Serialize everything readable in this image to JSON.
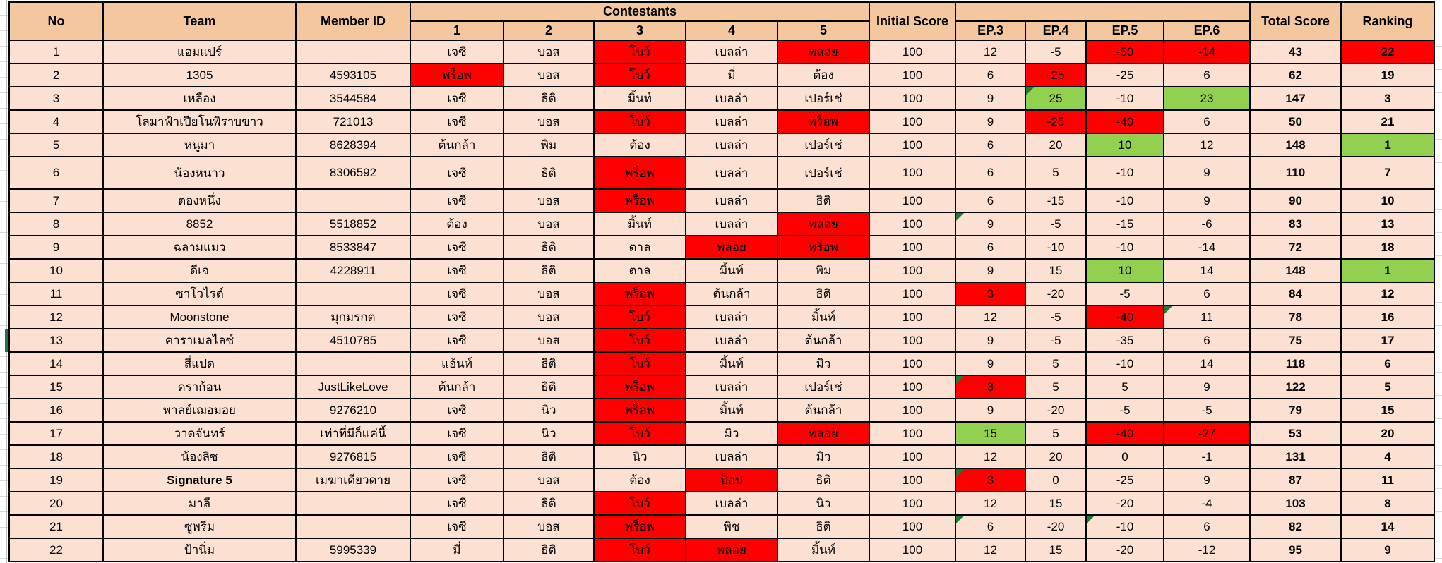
{
  "colors": {
    "header_bg": "#F4C79F",
    "row_bg": "#FCE0D1",
    "red": "#FF0000",
    "green": "#92D050",
    "flag_green": "#1E7B34"
  },
  "header": {
    "no": "No",
    "team": "Team",
    "member_id": "Member ID",
    "contestants": "Contestants",
    "contestant_numbers": [
      "1",
      "2",
      "3",
      "4",
      "5"
    ],
    "initial_score": "Initial Score",
    "ep_labels": [
      "EP.3",
      "EP.4",
      "EP.5",
      "EP.6"
    ],
    "total_score": "Total Score",
    "ranking": "Ranking"
  },
  "rows": [
    {
      "no": "1",
      "team": "แอมแปร์",
      "member_id": "",
      "c": [
        {
          "v": "เจซี"
        },
        {
          "v": "บอส"
        },
        {
          "v": "โบว์",
          "bg": "red"
        },
        {
          "v": "เบลล่า"
        },
        {
          "v": "พลอย",
          "bg": "red"
        }
      ],
      "initial": "100",
      "ep": [
        {
          "v": "12"
        },
        {
          "v": "-5"
        },
        {
          "v": "-50",
          "bg": "red"
        },
        {
          "v": "-14",
          "bg": "red"
        }
      ],
      "total": "43",
      "rank": {
        "v": "22",
        "bg": "red"
      }
    },
    {
      "no": "2",
      "team": "1305",
      "member_id": "4593105",
      "c": [
        {
          "v": "พร็อพ",
          "bg": "red"
        },
        {
          "v": "บอส"
        },
        {
          "v": "โบว์",
          "bg": "red"
        },
        {
          "v": "มี่"
        },
        {
          "v": "ต้อง"
        }
      ],
      "initial": "100",
      "ep": [
        {
          "v": "6"
        },
        {
          "v": "-25",
          "bg": "red"
        },
        {
          "v": "-25"
        },
        {
          "v": "6"
        }
      ],
      "total": "62",
      "rank": {
        "v": "19"
      }
    },
    {
      "no": "3",
      "team": "เหลือง",
      "member_id": "3544584",
      "c": [
        {
          "v": "เจซี"
        },
        {
          "v": "ธิติ"
        },
        {
          "v": "มิ้นท์"
        },
        {
          "v": "เบลล่า"
        },
        {
          "v": "เปอร์เช่"
        }
      ],
      "initial": "100",
      "ep": [
        {
          "v": "9"
        },
        {
          "v": "25",
          "bg": "green",
          "flag": true
        },
        {
          "v": "-10"
        },
        {
          "v": "23",
          "bg": "green"
        }
      ],
      "total": "147",
      "rank": {
        "v": "3"
      }
    },
    {
      "no": "4",
      "team": "โลมาฟ้าเปียโนพิราบขาว",
      "member_id": "721013",
      "c": [
        {
          "v": "เจซี"
        },
        {
          "v": "บอส"
        },
        {
          "v": "โบว์",
          "bg": "red"
        },
        {
          "v": "เบลล่า"
        },
        {
          "v": "พร็อพ",
          "bg": "red"
        }
      ],
      "initial": "100",
      "ep": [
        {
          "v": "9"
        },
        {
          "v": "-25",
          "bg": "red"
        },
        {
          "v": "-40",
          "bg": "red"
        },
        {
          "v": "6"
        }
      ],
      "total": "50",
      "rank": {
        "v": "21"
      }
    },
    {
      "no": "5",
      "team": "หนูมา",
      "member_id": "8628394",
      "c": [
        {
          "v": "ต้นกล้า"
        },
        {
          "v": "พิม"
        },
        {
          "v": "ต้อง"
        },
        {
          "v": "เบลล่า"
        },
        {
          "v": "เปอร์เช่"
        }
      ],
      "initial": "100",
      "ep": [
        {
          "v": "6"
        },
        {
          "v": "20"
        },
        {
          "v": "10",
          "bg": "green"
        },
        {
          "v": "12"
        }
      ],
      "total": "148",
      "rank": {
        "v": "1",
        "bg": "green"
      }
    },
    {
      "no": "6",
      "team": "น้องหนาว",
      "member_id": "8306592",
      "h": 46,
      "c": [
        {
          "v": "เจซี"
        },
        {
          "v": "ธิติ"
        },
        {
          "v": "พร็อพ",
          "bg": "red"
        },
        {
          "v": "เบลล่า"
        },
        {
          "v": "เปอร์เช่"
        }
      ],
      "initial": "100",
      "ep": [
        {
          "v": "6"
        },
        {
          "v": "5"
        },
        {
          "v": "-10"
        },
        {
          "v": "9"
        }
      ],
      "total": "110",
      "rank": {
        "v": "7"
      }
    },
    {
      "no": "7",
      "team": "ตองหนึ่ง",
      "member_id": "",
      "c": [
        {
          "v": "เจซี"
        },
        {
          "v": "บอส"
        },
        {
          "v": "พร็อพ",
          "bg": "red"
        },
        {
          "v": "เบลล่า"
        },
        {
          "v": "ธิติ"
        }
      ],
      "initial": "100",
      "ep": [
        {
          "v": "6"
        },
        {
          "v": "-15"
        },
        {
          "v": "-10"
        },
        {
          "v": "9"
        }
      ],
      "total": "90",
      "rank": {
        "v": "10"
      }
    },
    {
      "no": "8",
      "team": "8852",
      "member_id": "5518852",
      "c": [
        {
          "v": "ต้อง"
        },
        {
          "v": "บอส"
        },
        {
          "v": "มิ้นท์"
        },
        {
          "v": "เบลล่า"
        },
        {
          "v": "พลอย",
          "bg": "red"
        }
      ],
      "initial": "100",
      "ep": [
        {
          "v": "9",
          "flag": true
        },
        {
          "v": "-5"
        },
        {
          "v": "-15"
        },
        {
          "v": "-6"
        }
      ],
      "total": "83",
      "rank": {
        "v": "13"
      }
    },
    {
      "no": "9",
      "team": "ฉลามแมว",
      "member_id": "8533847",
      "c": [
        {
          "v": "เจซี"
        },
        {
          "v": "ธิติ"
        },
        {
          "v": "ตาล"
        },
        {
          "v": "พลอย",
          "bg": "red"
        },
        {
          "v": "พร็อพ",
          "bg": "red"
        }
      ],
      "initial": "100",
      "ep": [
        {
          "v": "6"
        },
        {
          "v": "-10"
        },
        {
          "v": "-10"
        },
        {
          "v": "-14"
        }
      ],
      "total": "72",
      "rank": {
        "v": "18"
      }
    },
    {
      "no": "10",
      "team": "ดีเจ",
      "member_id": "4228911",
      "c": [
        {
          "v": "เจซี"
        },
        {
          "v": "ธิติ"
        },
        {
          "v": "ตาล"
        },
        {
          "v": "มิ้นท์"
        },
        {
          "v": "พิม"
        }
      ],
      "initial": "100",
      "ep": [
        {
          "v": "9"
        },
        {
          "v": "15"
        },
        {
          "v": "10",
          "bg": "green"
        },
        {
          "v": "14"
        }
      ],
      "total": "148",
      "rank": {
        "v": "1",
        "bg": "green"
      }
    },
    {
      "no": "11",
      "team": "ซาโวไรต์",
      "member_id": "",
      "c": [
        {
          "v": "เจซี"
        },
        {
          "v": "บอส"
        },
        {
          "v": "พร็อพ",
          "bg": "red"
        },
        {
          "v": "ต้นกล้า"
        },
        {
          "v": "ธิติ"
        }
      ],
      "initial": "100",
      "ep": [
        {
          "v": "3",
          "bg": "red"
        },
        {
          "v": "-20"
        },
        {
          "v": "-5"
        },
        {
          "v": "6"
        }
      ],
      "total": "84",
      "rank": {
        "v": "12"
      }
    },
    {
      "no": "12",
      "team": "Moonstone",
      "member_id": "มุกมรกต",
      "c": [
        {
          "v": "เจซี"
        },
        {
          "v": "บอส"
        },
        {
          "v": "โบว์",
          "bg": "red"
        },
        {
          "v": "เบลล่า"
        },
        {
          "v": "มิ้นท์"
        }
      ],
      "initial": "100",
      "ep": [
        {
          "v": "12"
        },
        {
          "v": "-5"
        },
        {
          "v": "-40",
          "bg": "red"
        },
        {
          "v": "11",
          "flag": true
        }
      ],
      "total": "78",
      "rank": {
        "v": "16"
      }
    },
    {
      "no": "13",
      "team": "คาราเมลไลซ์",
      "member_id": "4510785",
      "c": [
        {
          "v": "เจซี"
        },
        {
          "v": "บอส"
        },
        {
          "v": "โบว์",
          "bg": "red"
        },
        {
          "v": "เบลล่า"
        },
        {
          "v": "ต้นกล้า"
        }
      ],
      "initial": "100",
      "ep": [
        {
          "v": "9"
        },
        {
          "v": "-5"
        },
        {
          "v": "-35"
        },
        {
          "v": "6"
        }
      ],
      "total": "75",
      "rank": {
        "v": "17"
      }
    },
    {
      "no": "14",
      "team": "สี่แปด",
      "member_id": "",
      "c": [
        {
          "v": "แอ้นท์"
        },
        {
          "v": "ธิติ"
        },
        {
          "v": "โบว์",
          "bg": "red"
        },
        {
          "v": "มิ้นท์"
        },
        {
          "v": "มิว"
        }
      ],
      "initial": "100",
      "ep": [
        {
          "v": "9"
        },
        {
          "v": "5"
        },
        {
          "v": "-10"
        },
        {
          "v": "14"
        }
      ],
      "total": "118",
      "rank": {
        "v": "6"
      }
    },
    {
      "no": "15",
      "team": "ดราก้อน",
      "member_id": "JustLikeLove",
      "c": [
        {
          "v": "ต้นกล้า"
        },
        {
          "v": "ธิติ"
        },
        {
          "v": "พร็อพ",
          "bg": "red"
        },
        {
          "v": "เบลล่า"
        },
        {
          "v": "เปอร์เช่"
        }
      ],
      "initial": "100",
      "ep": [
        {
          "v": "3",
          "bg": "red",
          "flag": true
        },
        {
          "v": "5"
        },
        {
          "v": "5"
        },
        {
          "v": "9"
        }
      ],
      "total": "122",
      "rank": {
        "v": "5"
      }
    },
    {
      "no": "16",
      "team": "พาลย์เฌอมอย",
      "member_id": "9276210",
      "c": [
        {
          "v": "เจซี"
        },
        {
          "v": "นิว"
        },
        {
          "v": "พร็อพ",
          "bg": "red"
        },
        {
          "v": "มิ้นท์"
        },
        {
          "v": "ต้นกล้า"
        }
      ],
      "initial": "100",
      "ep": [
        {
          "v": "9"
        },
        {
          "v": "-20"
        },
        {
          "v": "-5"
        },
        {
          "v": "-5"
        }
      ],
      "total": "79",
      "rank": {
        "v": "15"
      }
    },
    {
      "no": "17",
      "team": "วาดจันทร์",
      "member_id": "เท่าที่มีก็แค่นี้",
      "c": [
        {
          "v": "เจซี"
        },
        {
          "v": "นิว"
        },
        {
          "v": "โบว์",
          "bg": "red"
        },
        {
          "v": "มิว"
        },
        {
          "v": "พลอย",
          "bg": "red"
        }
      ],
      "initial": "100",
      "ep": [
        {
          "v": "15",
          "bg": "green"
        },
        {
          "v": "5"
        },
        {
          "v": "-40",
          "bg": "red"
        },
        {
          "v": "-27",
          "bg": "red"
        }
      ],
      "total": "53",
      "rank": {
        "v": "20"
      }
    },
    {
      "no": "18",
      "team": "น้องลิซ",
      "member_id": "9276815",
      "c": [
        {
          "v": "เจซี"
        },
        {
          "v": "ธิติ"
        },
        {
          "v": "นิว"
        },
        {
          "v": "เบลล่า"
        },
        {
          "v": "มิว"
        }
      ],
      "initial": "100",
      "ep": [
        {
          "v": "12"
        },
        {
          "v": "20"
        },
        {
          "v": "0"
        },
        {
          "v": "-1"
        }
      ],
      "total": "131",
      "rank": {
        "v": "4"
      }
    },
    {
      "no": "19",
      "team": "Signature 5",
      "team_bold": true,
      "member_id": "เมฆาเดียวดาย",
      "c": [
        {
          "v": "เจซี"
        },
        {
          "v": "บอส"
        },
        {
          "v": "ต้อง"
        },
        {
          "v": "ป็อป",
          "bg": "red"
        },
        {
          "v": "ธิติ"
        }
      ],
      "initial": "100",
      "ep": [
        {
          "v": "3",
          "bg": "red",
          "flag": true
        },
        {
          "v": "0"
        },
        {
          "v": "-25"
        },
        {
          "v": "9"
        }
      ],
      "total": "87",
      "rank": {
        "v": "11"
      }
    },
    {
      "no": "20",
      "team": "มาลี",
      "member_id": "",
      "c": [
        {
          "v": "เจซี"
        },
        {
          "v": "ธิติ"
        },
        {
          "v": "โบว์",
          "bg": "red"
        },
        {
          "v": "เบลล่า"
        },
        {
          "v": "นิว"
        }
      ],
      "initial": "100",
      "ep": [
        {
          "v": "12"
        },
        {
          "v": "15"
        },
        {
          "v": "-20"
        },
        {
          "v": "-4"
        }
      ],
      "total": "103",
      "rank": {
        "v": "8"
      }
    },
    {
      "no": "21",
      "team": "ซูพรีม",
      "member_id": "",
      "c": [
        {
          "v": "เจซี"
        },
        {
          "v": "บอส"
        },
        {
          "v": "พร็อพ",
          "bg": "red"
        },
        {
          "v": "พิช"
        },
        {
          "v": "ธิติ"
        }
      ],
      "initial": "100",
      "ep": [
        {
          "v": "6",
          "flag": true
        },
        {
          "v": "-20"
        },
        {
          "v": "-10",
          "flag": true
        },
        {
          "v": "6"
        }
      ],
      "total": "82",
      "rank": {
        "v": "14"
      }
    },
    {
      "no": "22",
      "team": "ป้านิ่ม",
      "member_id": "5995339",
      "c": [
        {
          "v": "มี่"
        },
        {
          "v": "ธิติ"
        },
        {
          "v": "โบว์",
          "bg": "red"
        },
        {
          "v": "พลอย",
          "bg": "red"
        },
        {
          "v": "มิ้นท์"
        }
      ],
      "initial": "100",
      "ep": [
        {
          "v": "12"
        },
        {
          "v": "15"
        },
        {
          "v": "-20"
        },
        {
          "v": "-12"
        }
      ],
      "total": "95",
      "rank": {
        "v": "9"
      }
    }
  ]
}
